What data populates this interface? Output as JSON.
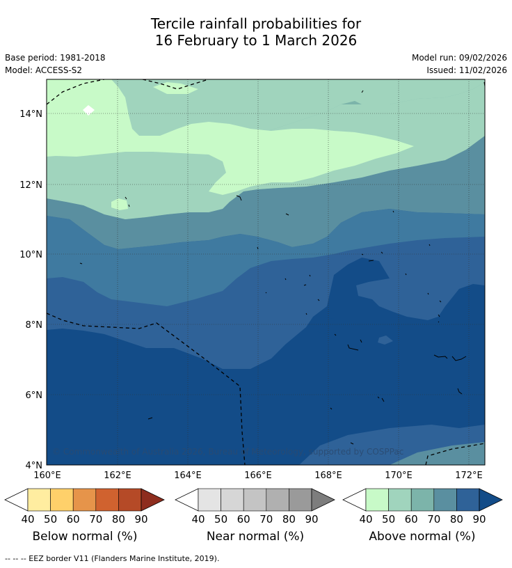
{
  "title": {
    "line1": "Tercile rainfall probabilities for",
    "line2": "16 February to 1 March 2026"
  },
  "meta": {
    "base_period": "Base period: 1981-2018",
    "model": "Model: ACCESS-S2",
    "model_run": "Model run: 09/02/2026",
    "issued": "Issued: 11/02/2026"
  },
  "map": {
    "lat_labels": [
      "14°N",
      "12°N",
      "10°N",
      "8°N",
      "6°N",
      "4°N"
    ],
    "lon_labels": [
      "160°E",
      "162°E",
      "164°E",
      "166°E",
      "168°E",
      "170°E",
      "172°E"
    ],
    "copyright": "© Commonwealth of Australia 2026, Bureau of Meteorology, supported by COSPPac"
  },
  "colorbars": [
    {
      "label": "Below normal (%)",
      "ticks": [
        "40",
        "50",
        "60",
        "70",
        "80",
        "90"
      ],
      "colors": [
        "#ffffff",
        "#ffeda0",
        "#fed06a",
        "#e6944a",
        "#d0622f",
        "#b54a27",
        "#8e2d1e"
      ]
    },
    {
      "label": "Near normal (%)",
      "ticks": [
        "40",
        "50",
        "60",
        "70",
        "80",
        "90"
      ],
      "colors": [
        "#ffffff",
        "#e4e4e4",
        "#d6d6d6",
        "#c4c4c4",
        "#b0b0b0",
        "#9a9a9a",
        "#7d7d7d"
      ]
    },
    {
      "label": "Above normal (%)",
      "ticks": [
        "40",
        "50",
        "60",
        "70",
        "80",
        "90"
      ],
      "colors": [
        "#ffffff",
        "#c8fac8",
        "#a0d4bd",
        "#7cb4aa",
        "#5a8fa0",
        "#2f6298",
        "#134c88"
      ]
    }
  ],
  "footer": "--  --  -- EEZ border V11 (Flanders Marine Institute, 2019)."
}
